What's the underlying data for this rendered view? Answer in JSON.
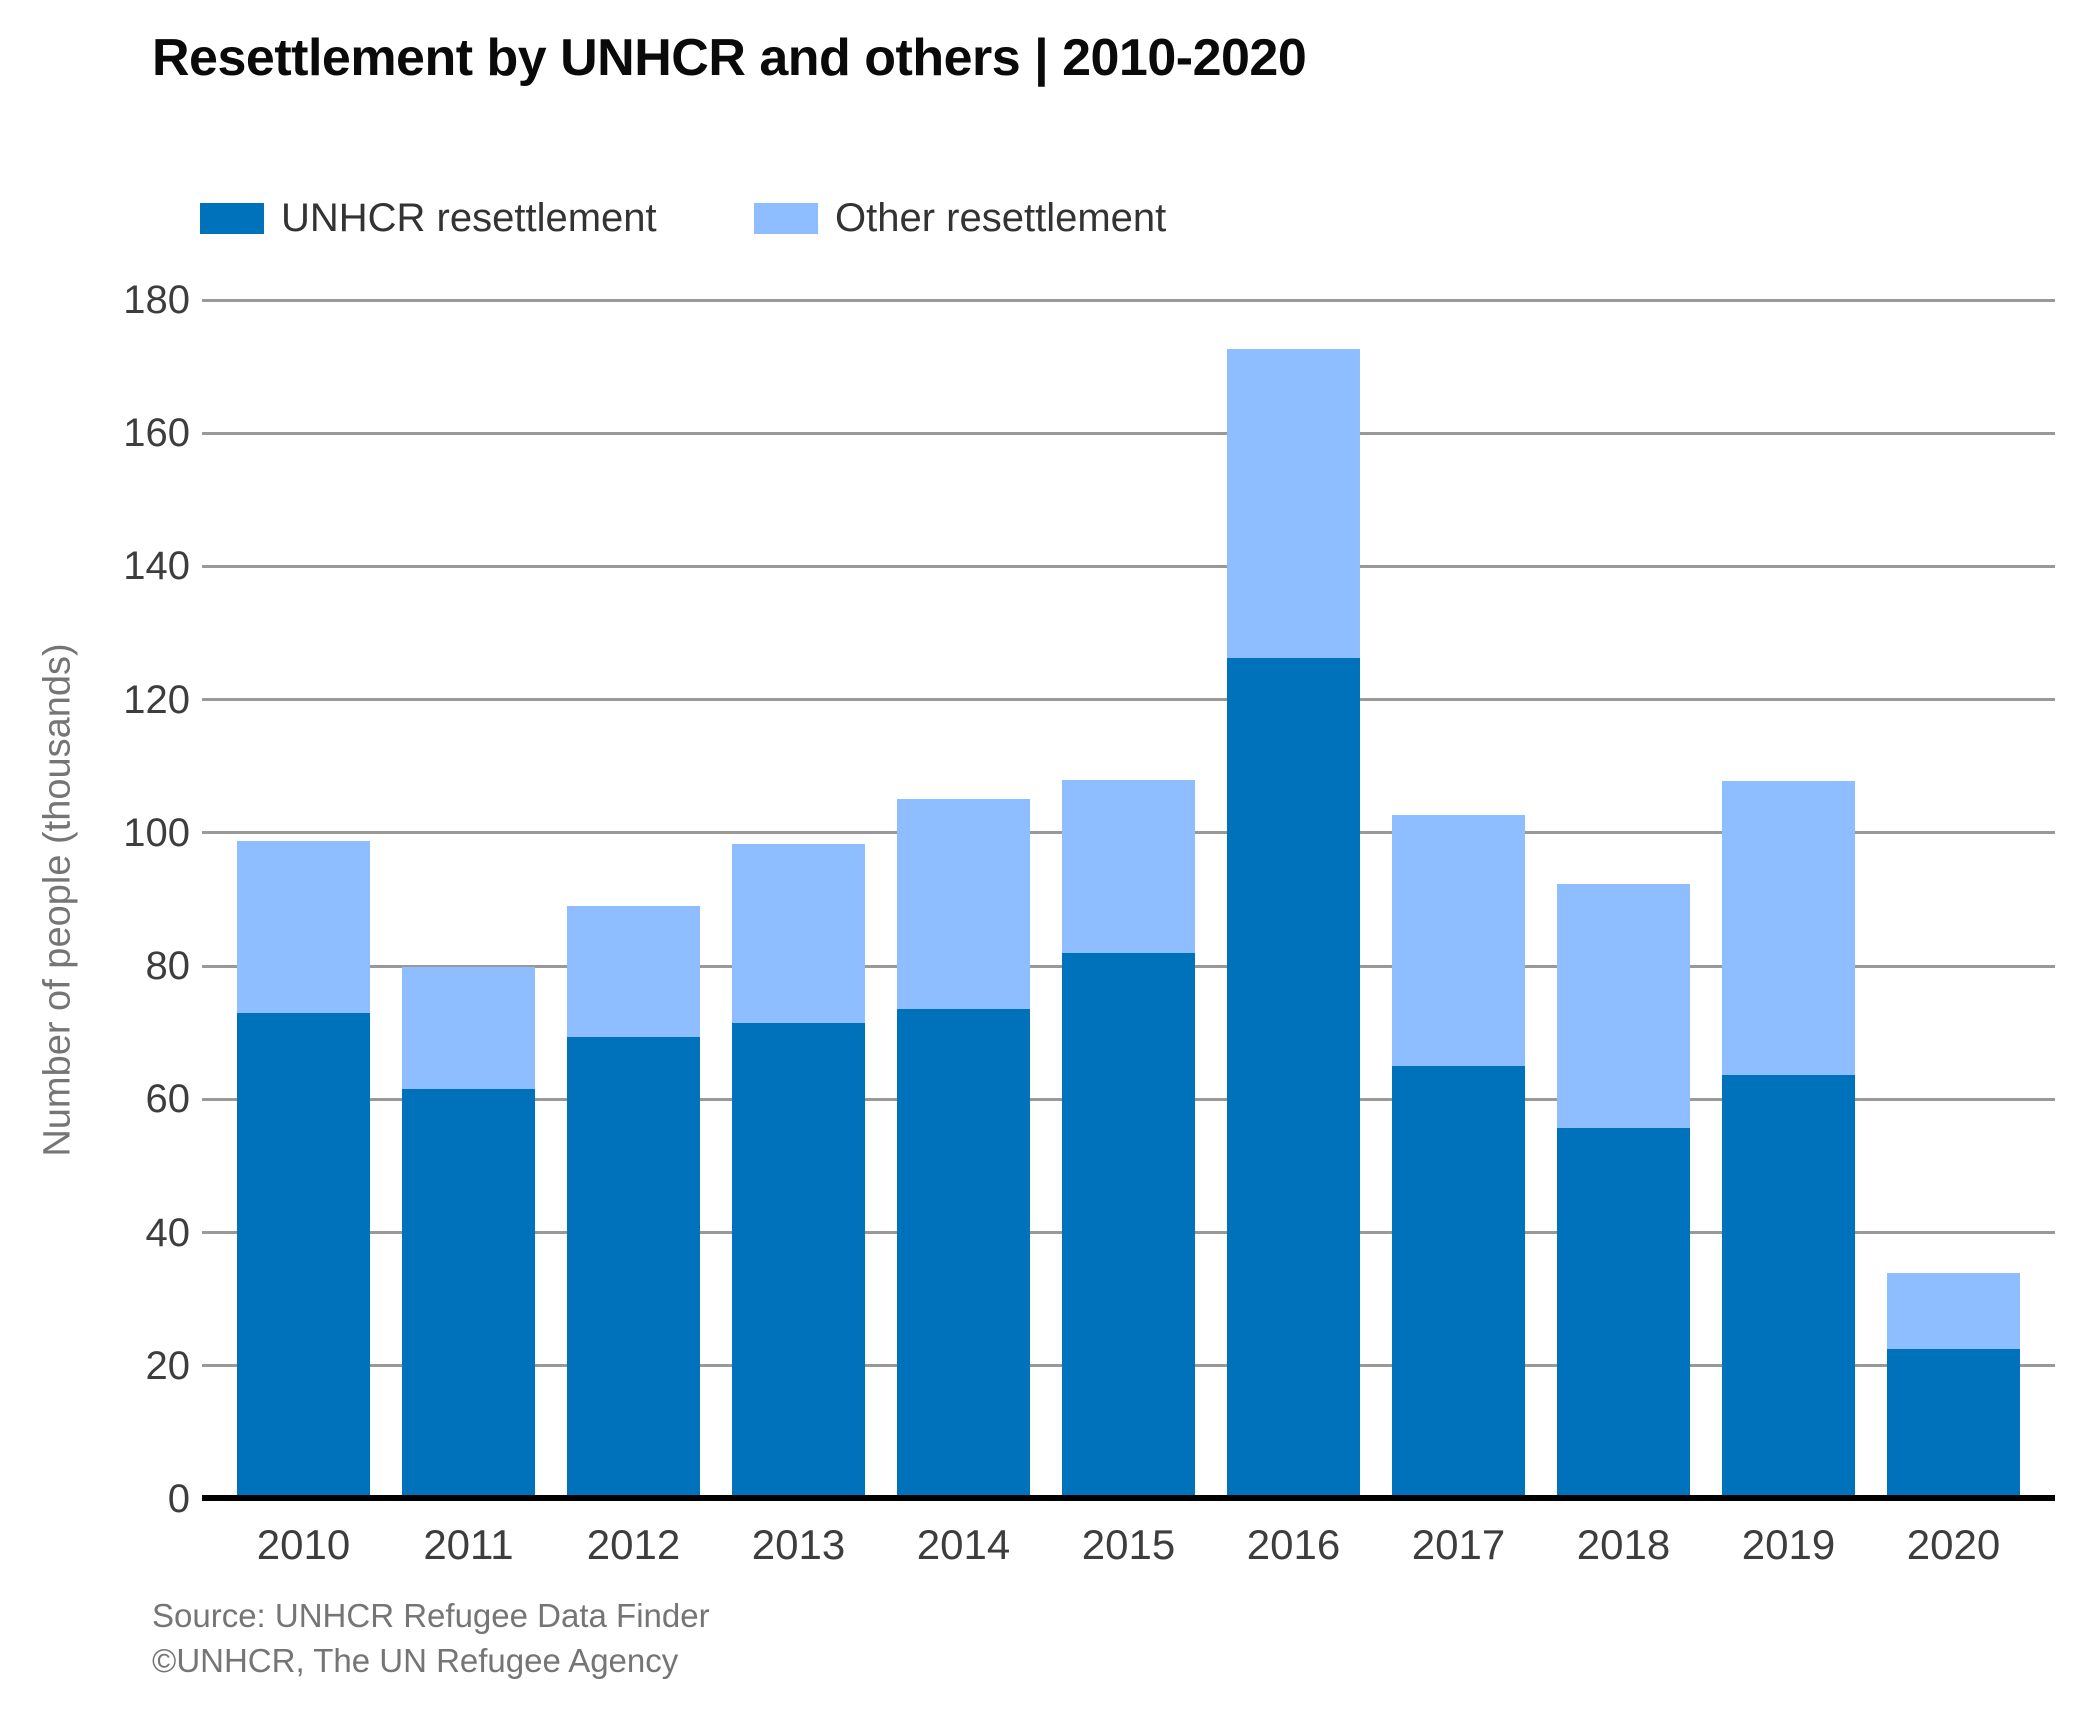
{
  "header": {
    "title": "Resettlement by UNHCR and others | 2010-2020"
  },
  "legend": {
    "items": [
      {
        "label": "UNHCR resettlement",
        "color": "#0072BC"
      },
      {
        "label": "Other resettlement",
        "color": "#8EBEFF"
      }
    ]
  },
  "source": {
    "line1": "Source: UNHCR Refugee Data Finder",
    "line2": "©UNHCR, The UN Refugee Agency"
  },
  "chart_data": {
    "type": "bar",
    "stacked": true,
    "title": "Resettlement by UNHCR and others | 2010-2020",
    "categories": [
      "2010",
      "2011",
      "2012",
      "2013",
      "2014",
      "2015",
      "2016",
      "2017",
      "2018",
      "2019",
      "2020"
    ],
    "series": [
      {
        "name": "UNHCR resettlement",
        "color": "#0072BC",
        "values": [
          73.0,
          61.6,
          69.3,
          71.5,
          73.6,
          81.9,
          126.3,
          65.0,
          55.7,
          63.7,
          22.5
        ]
      },
      {
        "name": "Other resettlement",
        "color": "#8EBEFF",
        "values": [
          25.8,
          18.2,
          19.7,
          26.9,
          31.5,
          26.1,
          46.4,
          37.7,
          36.7,
          44.1,
          11.4
        ]
      }
    ],
    "totals": [
      98.8,
      79.8,
      89.0,
      98.4,
      105.1,
      108.0,
      172.7,
      102.7,
      92.4,
      107.8,
      33.9
    ],
    "xlabel": "",
    "ylabel": "Number of people (thousands)",
    "ylim": [
      0,
      180
    ],
    "yticks": [
      0,
      20,
      40,
      60,
      80,
      100,
      120,
      140,
      160,
      180
    ],
    "grid": true,
    "legend_position": "top-left",
    "gridline_color": "#999999",
    "axis_line_color": "#000000"
  }
}
